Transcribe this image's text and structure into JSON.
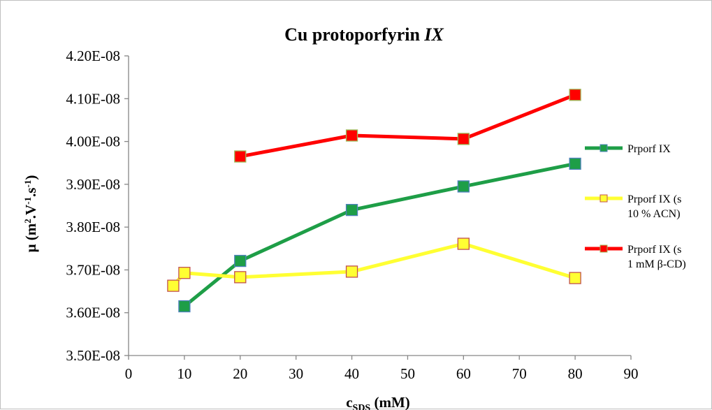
{
  "chart_data": {
    "type": "line",
    "title_main": "Cu protoporfyrin ",
    "title_italic": "IX",
    "xlabel_main": "c",
    "xlabel_sub": "SDS",
    "xlabel_unit": " (mM)",
    "ylabel": {
      "mu": "μ (m",
      "sup1": "2",
      "mid1": ".V",
      "sup2": "-1",
      "mid2": ".s",
      "sup3": "-1",
      "end": ")"
    },
    "xlim": [
      0,
      90
    ],
    "ylim": [
      3.5e-08,
      4.2e-08
    ],
    "x_ticks": [
      "0",
      "10",
      "20",
      "30",
      "40",
      "50",
      "60",
      "70",
      "80",
      "90"
    ],
    "y_ticks": [
      "3.50E-08",
      "3.60E-08",
      "3.70E-08",
      "3.80E-08",
      "3.90E-08",
      "4.00E-08",
      "4.10E-08",
      "4.20E-08"
    ],
    "grid": false,
    "legend_position": "right",
    "series": [
      {
        "name": "Prporf IX",
        "line_color": "#1e9e47",
        "marker_fill": "#1e9e47",
        "marker_stroke": "#4f81bd",
        "x": [
          10,
          20,
          40,
          60,
          80
        ],
        "y": [
          3.615e-08,
          3.721e-08,
          3.84e-08,
          3.895e-08,
          3.948e-08
        ]
      },
      {
        "name": "Prporf IX (s 10 % ACN)",
        "legend_lines": [
          "Prporf IX (s",
          "10 % ACN)"
        ],
        "line_color": "#ffff33",
        "marker_fill": "#ffff33",
        "marker_stroke": "#c0504d",
        "x": [
          8,
          10,
          20,
          40,
          60,
          80
        ],
        "y": [
          3.663e-08,
          3.693e-08,
          3.683e-08,
          3.696e-08,
          3.761e-08,
          3.681e-08
        ]
      },
      {
        "name": "Prporf IX (s 1 mM β-CD)",
        "legend_lines": [
          "Prporf IX (s",
          "1 mM β-CD)"
        ],
        "line_color": "#ff0000",
        "marker_fill": "#ff0000",
        "marker_stroke": "#9bbb59",
        "x": [
          20,
          40,
          60,
          80
        ],
        "y": [
          3.965e-08,
          4.014e-08,
          4.006e-08,
          4.109e-08
        ]
      }
    ]
  }
}
